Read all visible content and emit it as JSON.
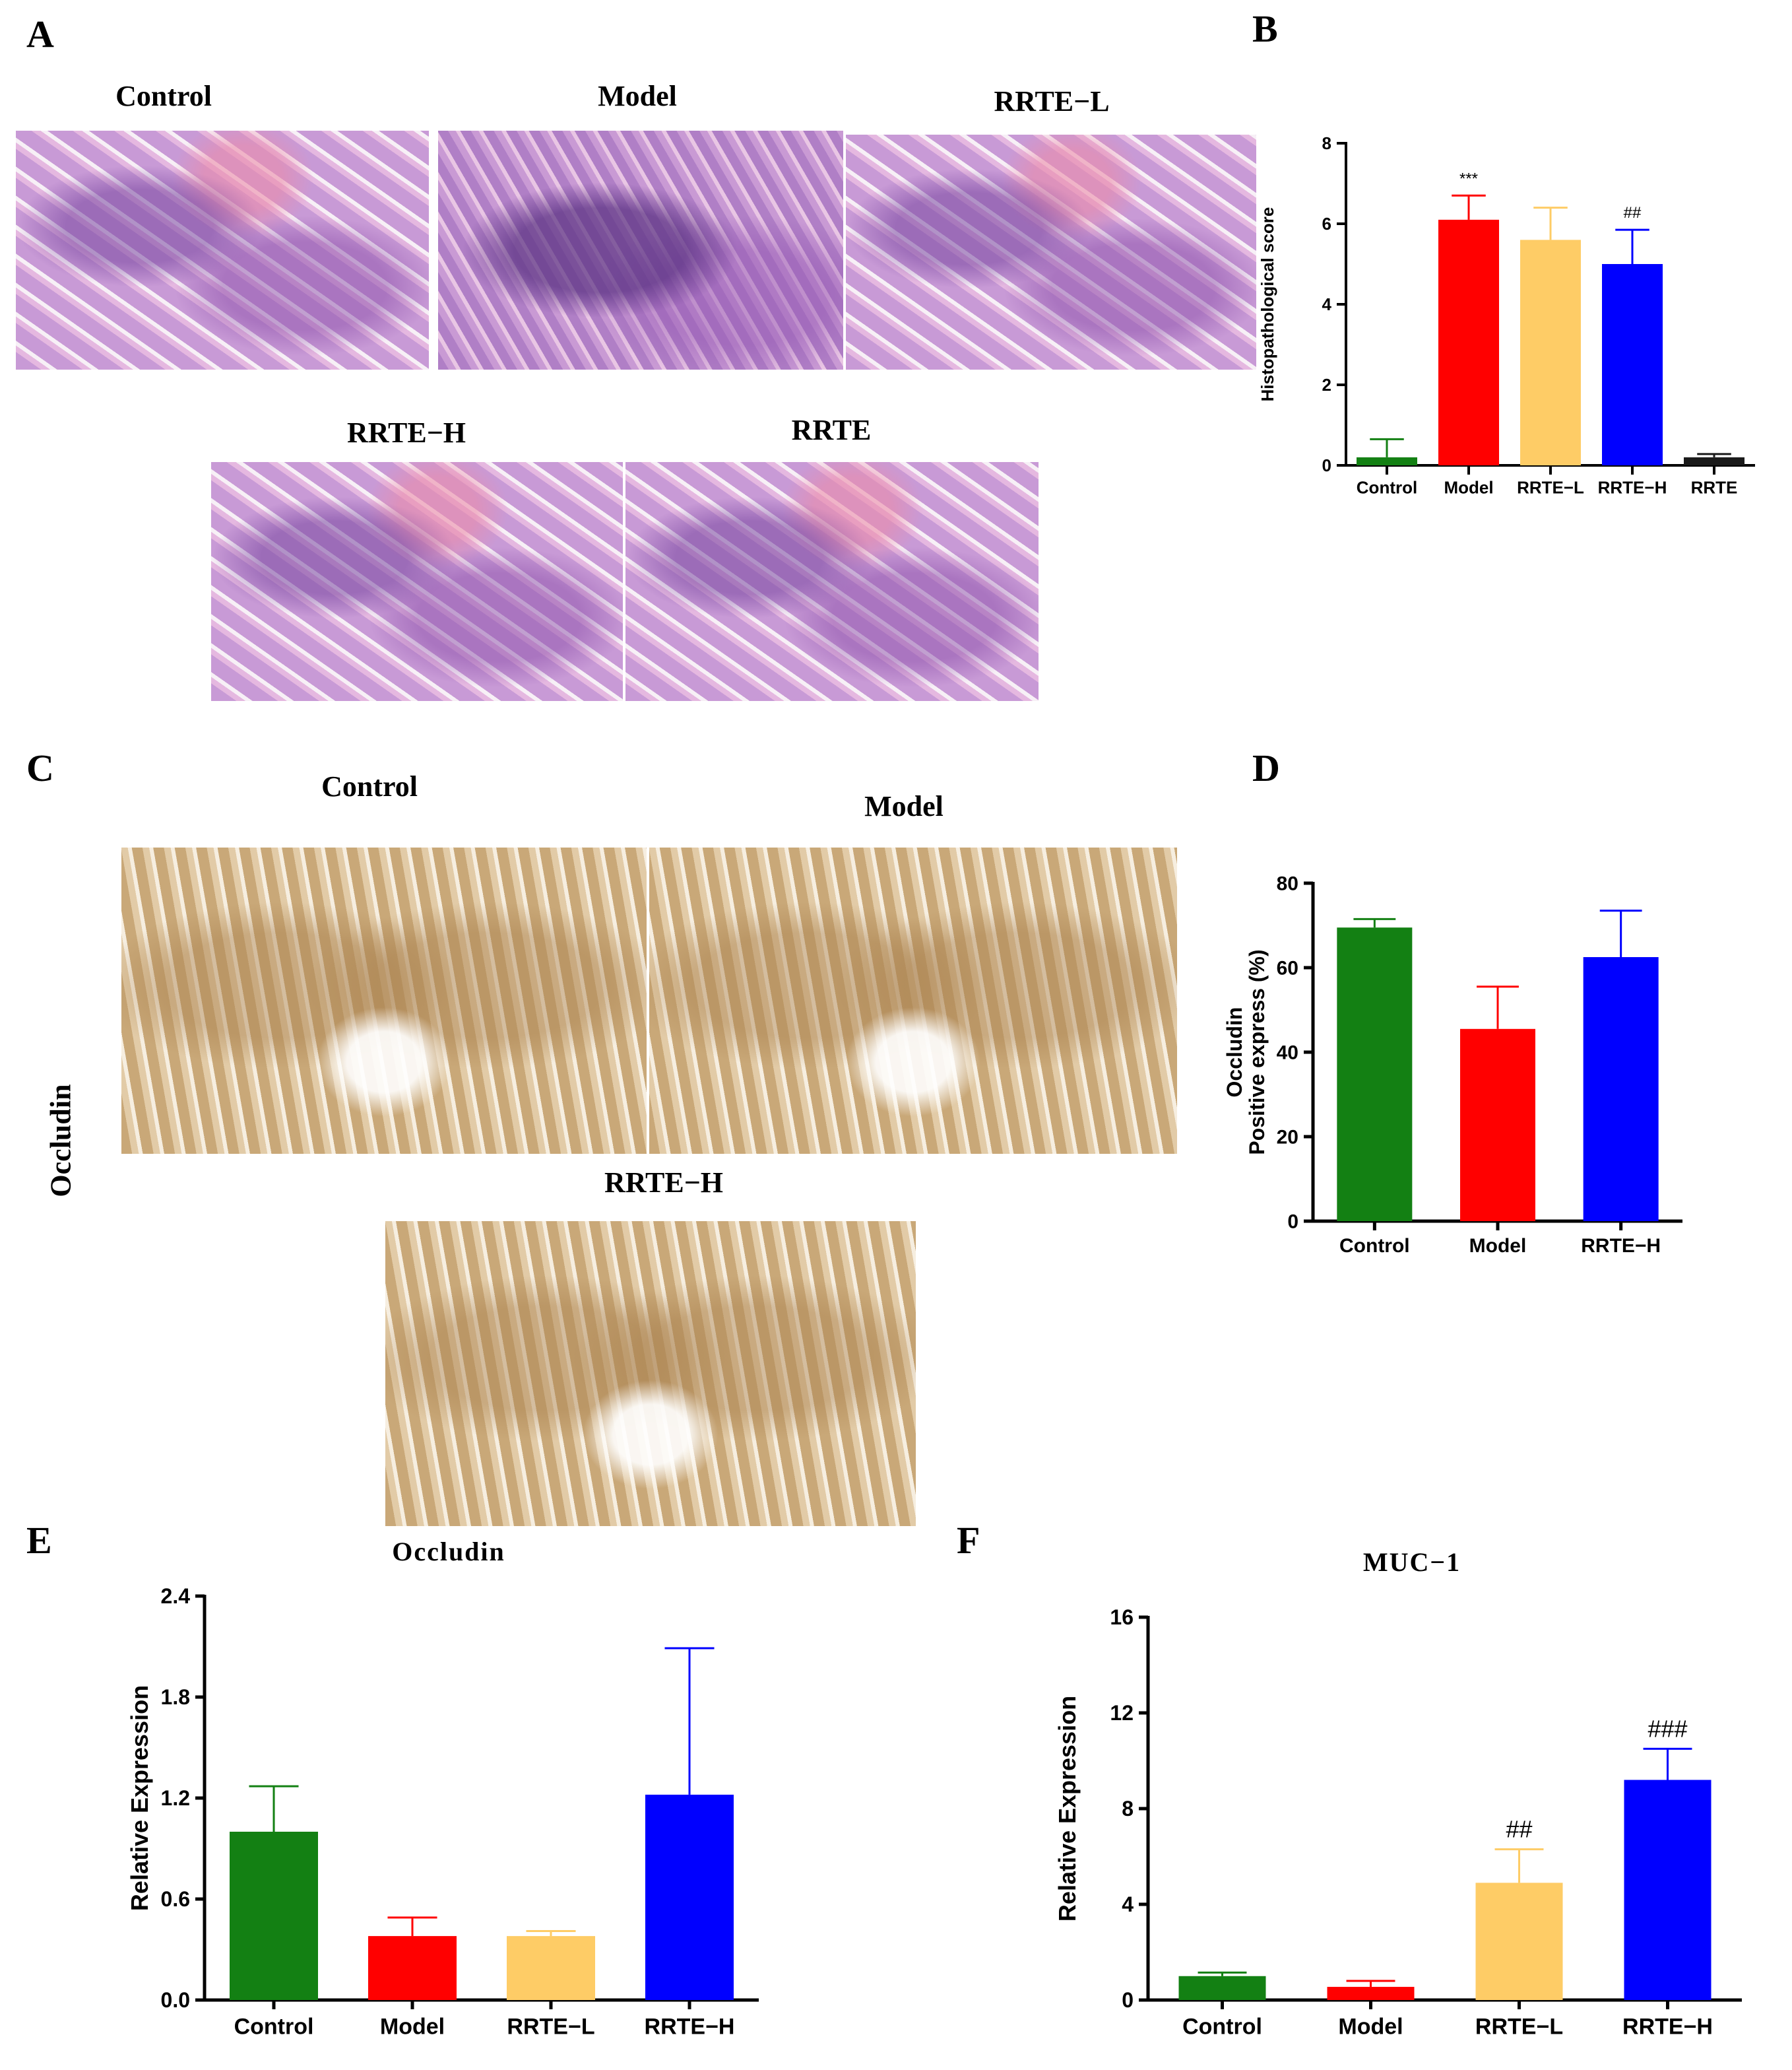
{
  "panels": {
    "A": {
      "letter": "A",
      "labels": [
        "Control",
        "Model",
        "RRTE−L",
        "RRTE−H",
        "RRTE"
      ]
    },
    "B": {
      "letter": "B"
    },
    "C": {
      "letter": "C",
      "side_label": "Occludin",
      "labels": [
        "Control",
        "Model",
        "RRTE−H"
      ]
    },
    "D": {
      "letter": "D"
    },
    "E": {
      "letter": "E"
    },
    "F": {
      "letter": "F"
    }
  },
  "colors": {
    "green": "#138013",
    "red": "#ff0000",
    "yellow": "#fecc66",
    "blue": "#0000ff",
    "black": "#1a1a1a"
  },
  "chart_data": [
    {
      "id": "B",
      "type": "bar",
      "title": "",
      "categories": [
        "Control",
        "Model",
        "RRTE−L",
        "RRTE−H",
        "RRTE"
      ],
      "values": [
        0.2,
        6.1,
        5.6,
        5.0,
        0.2
      ],
      "errors": [
        0.45,
        0.6,
        0.8,
        0.85,
        0.08
      ],
      "annotations": [
        "",
        "***",
        "",
        "##",
        ""
      ],
      "colors": [
        "green",
        "red",
        "yellow",
        "blue",
        "black"
      ],
      "ylabel": "Histopathological score",
      "xlabel": "",
      "ylim": [
        0,
        8
      ],
      "yticks": [
        0,
        2,
        4,
        6,
        8
      ]
    },
    {
      "id": "D",
      "type": "bar",
      "title": "",
      "categories": [
        "Control",
        "Model",
        "RRTE−H"
      ],
      "values": [
        69.5,
        45.5,
        62.5
      ],
      "errors": [
        2,
        10,
        11
      ],
      "annotations": [
        "",
        "",
        ""
      ],
      "colors": [
        "green",
        "red",
        "blue"
      ],
      "ylabel": "Positive express (%)",
      "ylabel2": "Occludin",
      "xlabel": "",
      "ylim": [
        0,
        80
      ],
      "yticks": [
        0,
        20,
        40,
        60,
        80
      ]
    },
    {
      "id": "E",
      "type": "bar",
      "title": "Occludin",
      "categories": [
        "Control",
        "Model",
        "RRTE−L",
        "RRTE−H"
      ],
      "values": [
        1.0,
        0.38,
        0.38,
        1.22
      ],
      "errors": [
        0.27,
        0.11,
        0.03,
        0.87
      ],
      "annotations": [
        "",
        "",
        "",
        ""
      ],
      "colors": [
        "green",
        "red",
        "yellow",
        "blue"
      ],
      "ylabel": "Relative Expression",
      "xlabel": "",
      "ylim": [
        0,
        2.4
      ],
      "yticks": [
        "0.0",
        "0.6",
        "1.2",
        "1.8",
        "2.4"
      ]
    },
    {
      "id": "F",
      "type": "bar",
      "title": "MUC−1",
      "categories": [
        "Control",
        "Model",
        "RRTE−L",
        "RRTE−H"
      ],
      "values": [
        1.0,
        0.55,
        4.9,
        9.2
      ],
      "errors": [
        0.15,
        0.25,
        1.4,
        1.3
      ],
      "annotations": [
        "",
        "",
        "##",
        "###"
      ],
      "colors": [
        "green",
        "red",
        "yellow",
        "blue"
      ],
      "ylabel": "Relative Expression",
      "xlabel": "",
      "ylim": [
        0,
        16
      ],
      "yticks": [
        0,
        4,
        8,
        12,
        16
      ]
    }
  ]
}
